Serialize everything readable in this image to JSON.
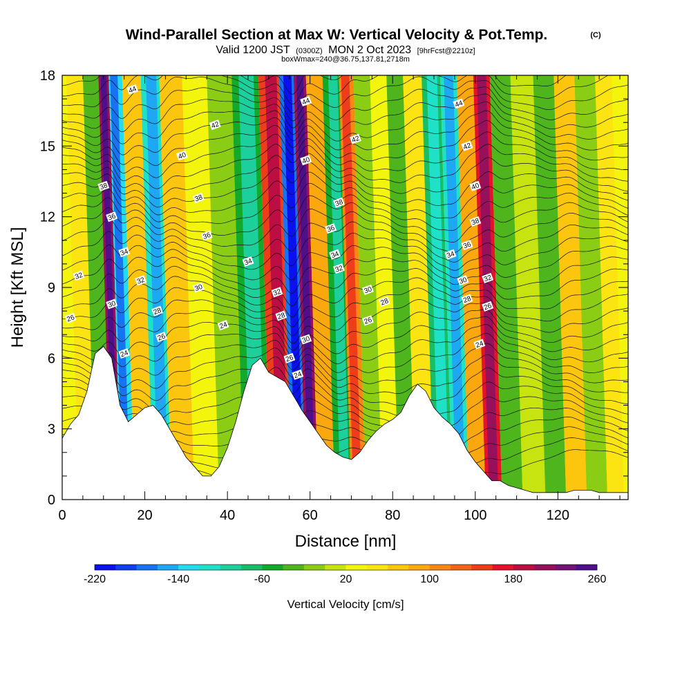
{
  "title": {
    "main": "Wind-Parallel Section at Max W: Vertical Velocity & Pot.Temp.",
    "copyright": "(C)",
    "valid_prefix": "Valid 1200 JST",
    "valid_utc": "(0300Z)",
    "valid_date": "MON 2 Oct 2023",
    "forecast": "[9hrFcst@2210z]",
    "box": "boxWmax=240@36.75,137.81,2718m"
  },
  "colorbar_palette": [
    "#0a10ee",
    "#0f3ff0",
    "#1873f3",
    "#1ea8f3",
    "#23dcee",
    "#1ee1c8",
    "#1ccf9b",
    "#18bd66",
    "#13aa2b",
    "#4fb51c",
    "#8bcd14",
    "#c7e411",
    "#f4f50c",
    "#fbe411",
    "#fcc60f",
    "#fba80f",
    "#f88813",
    "#f26519",
    "#ee3d1b",
    "#e4122a",
    "#bd0e43",
    "#96105c",
    "#711475",
    "#4f0f8a"
  ],
  "chart_data": {
    "type": "heatmap",
    "x_axis": {
      "label": "Distance [nm]",
      "range": [
        0,
        137
      ],
      "ticks": [
        0,
        20,
        40,
        60,
        80,
        100,
        120
      ]
    },
    "y_axis": {
      "label": "Height [Kft MSL]",
      "range": [
        0,
        18
      ],
      "ticks": [
        0,
        3,
        6,
        9,
        12,
        15,
        18
      ]
    },
    "colorbar": {
      "label": "Vertical Velocity [cm/s]",
      "range": [
        -220,
        260
      ],
      "step": 20,
      "tick_values": [
        -220,
        -140,
        -60,
        20,
        100,
        180,
        260
      ],
      "tick_labels": [
        "-220",
        "-140",
        "-60",
        "20",
        "100",
        "180",
        "260"
      ]
    },
    "velocity_bands": [
      {
        "x_nm": 4,
        "value": 40
      },
      {
        "x_nm": 9,
        "value": -40
      },
      {
        "x_nm": 11.5,
        "value": 200
      },
      {
        "x_nm": 14,
        "value": -140
      },
      {
        "x_nm": 18,
        "value": 60
      },
      {
        "x_nm": 23,
        "value": -120
      },
      {
        "x_nm": 27,
        "value": 70
      },
      {
        "x_nm": 34,
        "value": 30
      },
      {
        "x_nm": 39,
        "value": -20
      },
      {
        "x_nm": 46,
        "value": -50
      },
      {
        "x_nm": 52,
        "value": 150
      },
      {
        "x_nm": 56,
        "value": -180
      },
      {
        "x_nm": 59,
        "value": 200
      },
      {
        "x_nm": 62,
        "value": 80
      },
      {
        "x_nm": 67,
        "value": -60
      },
      {
        "x_nm": 70,
        "value": 100
      },
      {
        "x_nm": 74,
        "value": -20
      },
      {
        "x_nm": 78,
        "value": 30
      },
      {
        "x_nm": 82,
        "value": -30
      },
      {
        "x_nm": 86,
        "value": 50
      },
      {
        "x_nm": 91,
        "value": -80
      },
      {
        "x_nm": 95,
        "value": -120
      },
      {
        "x_nm": 99,
        "value": 80
      },
      {
        "x_nm": 103,
        "value": 170
      },
      {
        "x_nm": 107,
        "value": -30
      },
      {
        "x_nm": 113,
        "value": 10
      },
      {
        "x_nm": 118,
        "value": -40
      },
      {
        "x_nm": 123,
        "value": 60
      },
      {
        "x_nm": 128,
        "value": -10
      },
      {
        "x_nm": 133,
        "value": 40
      }
    ],
    "terrain_kft": [
      [
        0,
        2.6
      ],
      [
        2,
        3.2
      ],
      [
        4,
        3.6
      ],
      [
        6,
        4.6
      ],
      [
        8,
        6.2
      ],
      [
        10,
        6.5
      ],
      [
        12,
        6.0
      ],
      [
        14,
        4.0
      ],
      [
        16,
        3.3
      ],
      [
        18,
        3.6
      ],
      [
        20,
        3.9
      ],
      [
        22,
        4.0
      ],
      [
        24,
        3.6
      ],
      [
        26,
        3.0
      ],
      [
        28,
        2.4
      ],
      [
        30,
        1.8
      ],
      [
        32,
        1.4
      ],
      [
        34,
        1.0
      ],
      [
        36,
        1.0
      ],
      [
        38,
        1.4
      ],
      [
        40,
        2.2
      ],
      [
        42,
        3.3
      ],
      [
        44,
        4.6
      ],
      [
        46,
        5.7
      ],
      [
        48,
        6.0
      ],
      [
        50,
        5.4
      ],
      [
        52,
        5.2
      ],
      [
        54,
        5.0
      ],
      [
        56,
        4.4
      ],
      [
        58,
        3.8
      ],
      [
        60,
        3.3
      ],
      [
        62,
        2.8
      ],
      [
        64,
        2.3
      ],
      [
        66,
        2.0
      ],
      [
        68,
        1.8
      ],
      [
        70,
        1.7
      ],
      [
        72,
        2.0
      ],
      [
        74,
        2.5
      ],
      [
        76,
        2.9
      ],
      [
        78,
        3.2
      ],
      [
        80,
        3.4
      ],
      [
        82,
        3.7
      ],
      [
        84,
        4.4
      ],
      [
        86,
        4.9
      ],
      [
        88,
        4.6
      ],
      [
        90,
        3.9
      ],
      [
        92,
        3.5
      ],
      [
        94,
        3.2
      ],
      [
        96,
        2.8
      ],
      [
        98,
        2.1
      ],
      [
        100,
        1.6
      ],
      [
        102,
        1.2
      ],
      [
        104,
        0.8
      ],
      [
        106,
        0.8
      ],
      [
        108,
        0.6
      ],
      [
        110,
        0.5
      ],
      [
        112,
        0.4
      ],
      [
        114,
        0.3
      ],
      [
        116,
        0.3
      ],
      [
        118,
        0.3
      ],
      [
        120,
        0.3
      ],
      [
        122,
        0.3
      ],
      [
        124,
        0.4
      ],
      [
        126,
        0.4
      ],
      [
        128,
        0.4
      ],
      [
        130,
        0.3
      ],
      [
        132,
        0.3
      ],
      [
        134,
        0.3
      ],
      [
        137,
        0.3
      ]
    ],
    "theta_contour_levels": [
      24,
      26,
      28,
      30,
      32,
      34,
      36,
      38,
      40,
      42,
      44
    ],
    "contour_labels": [
      {
        "text": "44",
        "x_nm": 17,
        "y_kft": 17.4
      },
      {
        "text": "42",
        "x_nm": 37,
        "y_kft": 15.9
      },
      {
        "text": "40",
        "x_nm": 29,
        "y_kft": 14.6
      },
      {
        "text": "38",
        "x_nm": 10,
        "y_kft": 13.3
      },
      {
        "text": "38",
        "x_nm": 33,
        "y_kft": 12.8
      },
      {
        "text": "36",
        "x_nm": 12,
        "y_kft": 12.0
      },
      {
        "text": "36",
        "x_nm": 35,
        "y_kft": 11.2
      },
      {
        "text": "34",
        "x_nm": 15,
        "y_kft": 10.5
      },
      {
        "text": "34",
        "x_nm": 45,
        "y_kft": 10.1
      },
      {
        "text": "32",
        "x_nm": 4,
        "y_kft": 9.5
      },
      {
        "text": "32",
        "x_nm": 19,
        "y_kft": 9.3
      },
      {
        "text": "30",
        "x_nm": 33,
        "y_kft": 9.0
      },
      {
        "text": "30",
        "x_nm": 12,
        "y_kft": 8.3
      },
      {
        "text": "28",
        "x_nm": 23,
        "y_kft": 8.0
      },
      {
        "text": "26",
        "x_nm": 2,
        "y_kft": 7.7
      },
      {
        "text": "24",
        "x_nm": 39,
        "y_kft": 7.4
      },
      {
        "text": "26",
        "x_nm": 24,
        "y_kft": 6.9
      },
      {
        "text": "24",
        "x_nm": 15,
        "y_kft": 6.2
      },
      {
        "text": "44",
        "x_nm": 59,
        "y_kft": 16.9
      },
      {
        "text": "42",
        "x_nm": 71,
        "y_kft": 15.3
      },
      {
        "text": "40",
        "x_nm": 59,
        "y_kft": 14.4
      },
      {
        "text": "38",
        "x_nm": 67,
        "y_kft": 12.6
      },
      {
        "text": "36",
        "x_nm": 65,
        "y_kft": 11.5
      },
      {
        "text": "34",
        "x_nm": 66,
        "y_kft": 10.4
      },
      {
        "text": "32",
        "x_nm": 67,
        "y_kft": 9.8
      },
      {
        "text": "32",
        "x_nm": 52,
        "y_kft": 8.8
      },
      {
        "text": "30",
        "x_nm": 74,
        "y_kft": 8.9
      },
      {
        "text": "28",
        "x_nm": 78,
        "y_kft": 8.4
      },
      {
        "text": "28",
        "x_nm": 53,
        "y_kft": 7.8
      },
      {
        "text": "26",
        "x_nm": 74,
        "y_kft": 7.6
      },
      {
        "text": "30",
        "x_nm": 59,
        "y_kft": 6.8
      },
      {
        "text": "26",
        "x_nm": 55,
        "y_kft": 6.0
      },
      {
        "text": "24",
        "x_nm": 57,
        "y_kft": 5.3
      },
      {
        "text": "44",
        "x_nm": 96,
        "y_kft": 16.8
      },
      {
        "text": "42",
        "x_nm": 98,
        "y_kft": 15.0
      },
      {
        "text": "40",
        "x_nm": 100,
        "y_kft": 13.3
      },
      {
        "text": "38",
        "x_nm": 100,
        "y_kft": 11.8
      },
      {
        "text": "36",
        "x_nm": 98,
        "y_kft": 10.8
      },
      {
        "text": "34",
        "x_nm": 94,
        "y_kft": 10.4
      },
      {
        "text": "32",
        "x_nm": 103,
        "y_kft": 9.4
      },
      {
        "text": "30",
        "x_nm": 97,
        "y_kft": 9.3
      },
      {
        "text": "28",
        "x_nm": 98,
        "y_kft": 8.5
      },
      {
        "text": "26",
        "x_nm": 103,
        "y_kft": 8.2
      },
      {
        "text": "24",
        "x_nm": 101,
        "y_kft": 6.6
      }
    ]
  }
}
